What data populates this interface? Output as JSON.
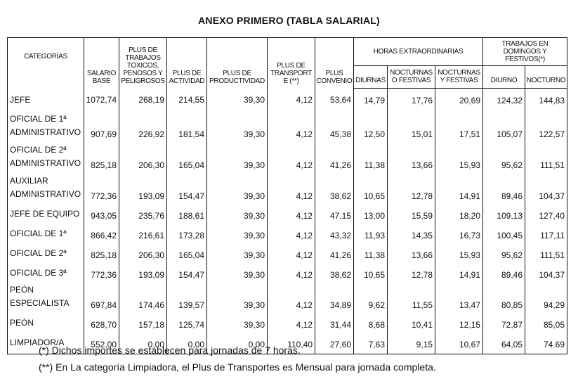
{
  "title": "ANEXO PRIMERO (TABLA SALARIAL)",
  "headers": {
    "categorias": "CATEGORÍAS",
    "salario_base": "SALARIO BASE",
    "plus_toxicos": "PLUS DE TRABAJOS TOXICOS, PENOSOS Y PELIGROSOS",
    "plus_actividad": "PLUS DE ACTIVIDAD",
    "plus_productividad": "PLUS DE PRODUCTIVIDAD",
    "plus_transporte": "PLUS DE TRANSPORTE (**)",
    "plus_convenio": "PLUS CONVENIO",
    "horas_extra": "HORAS EXTRAORDINARIAS",
    "diurnas": "DIURNAS",
    "nocturnas_o_festivas": "NOCTURNAS O FESTIVAS",
    "nocturnas_y_festivas": "NOCTURNAS Y FESTIVAS",
    "domingos": "TRABAJOS EN DOMINGOS Y FESTIVOS(*)",
    "diurno": "DIURNO",
    "nocturno": "NOCTURNO"
  },
  "rows": [
    {
      "cat": "JEFE",
      "v": [
        "1072,74",
        "268,19",
        "214,55",
        "39,30",
        "4,12",
        "53,64",
        "14,79",
        "17,76",
        "20,69",
        "124,32",
        "144,83"
      ]
    },
    {
      "cat": "OFICIAL DE 1ª ADMINISTRATIVO",
      "v": [
        "907,69",
        "226,92",
        "181,54",
        "39,30",
        "4,12",
        "45,38",
        "12,50",
        "15,01",
        "17,51",
        "105,07",
        "122,57"
      ]
    },
    {
      "cat": "OFICIAL DE 2ª ADMINISTRATIVO",
      "v": [
        "825,18",
        "206,30",
        "165,04",
        "39,30",
        "4,12",
        "41,26",
        "11,38",
        "13,66",
        "15,93",
        "95,62",
        "111,51"
      ]
    },
    {
      "cat": "AUXILIAR ADMINISTRATIVO",
      "v": [
        "772,36",
        "193,09",
        "154,47",
        "39,30",
        "4,12",
        "38,62",
        "10,65",
        "12,78",
        "14,91",
        "89,46",
        "104,37"
      ]
    },
    {
      "cat": "JEFE DE EQUIPO",
      "v": [
        "943,05",
        "235,76",
        "188,61",
        "39,30",
        "4,12",
        "47,15",
        "13,00",
        "15,59",
        "18,20",
        "109,13",
        "127,40"
      ]
    },
    {
      "cat": "OFICIAL DE 1ª",
      "v": [
        "866,42",
        "216,61",
        "173,28",
        "39,30",
        "4,12",
        "43,32",
        "11,93",
        "14,35",
        "16,73",
        "100,45",
        "117,11"
      ]
    },
    {
      "cat": "OFICIAL DE 2ª",
      "v": [
        "825,18",
        "206,30",
        "165,04",
        "39,30",
        "4,12",
        "41,26",
        "11,38",
        "13,66",
        "15,93",
        "95,62",
        "111,51"
      ]
    },
    {
      "cat": "OFICIAL DE 3ª",
      "v": [
        "772,36",
        "193,09",
        "154,47",
        "39,30",
        "4,12",
        "38,62",
        "10,65",
        "12,78",
        "14,91",
        "89,46",
        "104,37"
      ]
    },
    {
      "cat": "PEÓN ESPECIALISTA",
      "v": [
        "697,84",
        "174,46",
        "139,57",
        "39,30",
        "4,12",
        "34,89",
        "9,62",
        "11,55",
        "13,47",
        "80,85",
        "94,29"
      ]
    },
    {
      "cat": "PEÓN",
      "v": [
        "628,70",
        "157,18",
        "125,74",
        "39,30",
        "4,12",
        "31,44",
        "8,68",
        "10,41",
        "12,15",
        "72,87",
        "85,05"
      ]
    },
    {
      "cat": "LIMPIADOR/A",
      "v": [
        "552,00",
        "0,00",
        "0,00",
        "0,00",
        "110,40",
        "27,60",
        "7,63",
        "9,15",
        "10,67",
        "64,05",
        "74.69"
      ]
    }
  ],
  "footnotes": [
    "(*) Dichos importes se establecen para jornadas de 7 horas.",
    "(**) En La categoría Limpiadora, el Plus de Transportes es Mensual para jornada completa."
  ]
}
